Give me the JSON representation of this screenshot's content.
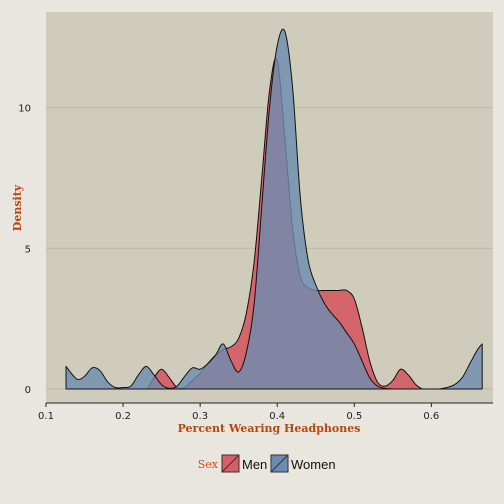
{
  "chart_data": {
    "type": "area",
    "title": "",
    "xlabel": "Percent Wearing Headphones",
    "ylabel": "Density",
    "xlim": [
      0.1,
      0.68
    ],
    "ylim": [
      -0.5,
      13.4
    ],
    "xticks": [
      "0.1",
      "0.2",
      "0.3",
      "0.4",
      "0.5",
      "0.6"
    ],
    "yticks": [
      "0",
      "5",
      "10"
    ],
    "grid": true,
    "legend_title": "Sex",
    "legend_position": "bottom",
    "series": [
      {
        "name": "Men",
        "color": "#d45f66",
        "x": [
          0.232,
          0.24,
          0.25,
          0.26,
          0.27,
          0.28,
          0.29,
          0.3,
          0.31,
          0.32,
          0.33,
          0.34,
          0.35,
          0.36,
          0.37,
          0.38,
          0.39,
          0.4,
          0.41,
          0.42,
          0.43,
          0.44,
          0.45,
          0.46,
          0.47,
          0.48,
          0.49,
          0.5,
          0.51,
          0.52,
          0.53,
          0.54,
          0.55,
          0.56,
          0.57,
          0.58,
          0.588
        ],
        "y": [
          0.0,
          0.4,
          0.7,
          0.4,
          0.05,
          0.05,
          0.3,
          0.55,
          0.9,
          1.2,
          1.4,
          1.5,
          1.8,
          2.7,
          4.5,
          7.5,
          10.6,
          11.7,
          8.9,
          5.7,
          4.0,
          3.6,
          3.5,
          3.5,
          3.5,
          3.5,
          3.5,
          3.2,
          2.2,
          1.0,
          0.25,
          0.1,
          0.3,
          0.7,
          0.5,
          0.15,
          0.0
        ]
      },
      {
        "name": "Women",
        "color": "#6b8cb0",
        "x": [
          0.126,
          0.14,
          0.15,
          0.16,
          0.17,
          0.18,
          0.19,
          0.2,
          0.21,
          0.22,
          0.23,
          0.24,
          0.25,
          0.26,
          0.27,
          0.28,
          0.29,
          0.3,
          0.31,
          0.32,
          0.33,
          0.34,
          0.35,
          0.36,
          0.37,
          0.38,
          0.39,
          0.4,
          0.41,
          0.42,
          0.43,
          0.44,
          0.45,
          0.46,
          0.47,
          0.48,
          0.49,
          0.5,
          0.51,
          0.52,
          0.53,
          0.54,
          0.55,
          0.56,
          0.57,
          0.58,
          0.59,
          0.6,
          0.61,
          0.62,
          0.63,
          0.64,
          0.65,
          0.66,
          0.666
        ],
        "y": [
          0.8,
          0.35,
          0.45,
          0.75,
          0.65,
          0.25,
          0.05,
          0.05,
          0.1,
          0.5,
          0.8,
          0.5,
          0.15,
          0.02,
          0.1,
          0.45,
          0.75,
          0.7,
          0.9,
          1.2,
          1.6,
          1.0,
          0.6,
          1.3,
          3.0,
          6.5,
          10.0,
          12.2,
          12.7,
          10.7,
          6.8,
          4.6,
          3.7,
          3.1,
          2.7,
          2.4,
          2.0,
          1.6,
          1.0,
          0.4,
          0.1,
          0.02,
          0.0,
          0.0,
          0.0,
          0.0,
          0.0,
          0.0,
          0.0,
          0.05,
          0.15,
          0.4,
          0.9,
          1.4,
          1.6
        ]
      }
    ]
  }
}
